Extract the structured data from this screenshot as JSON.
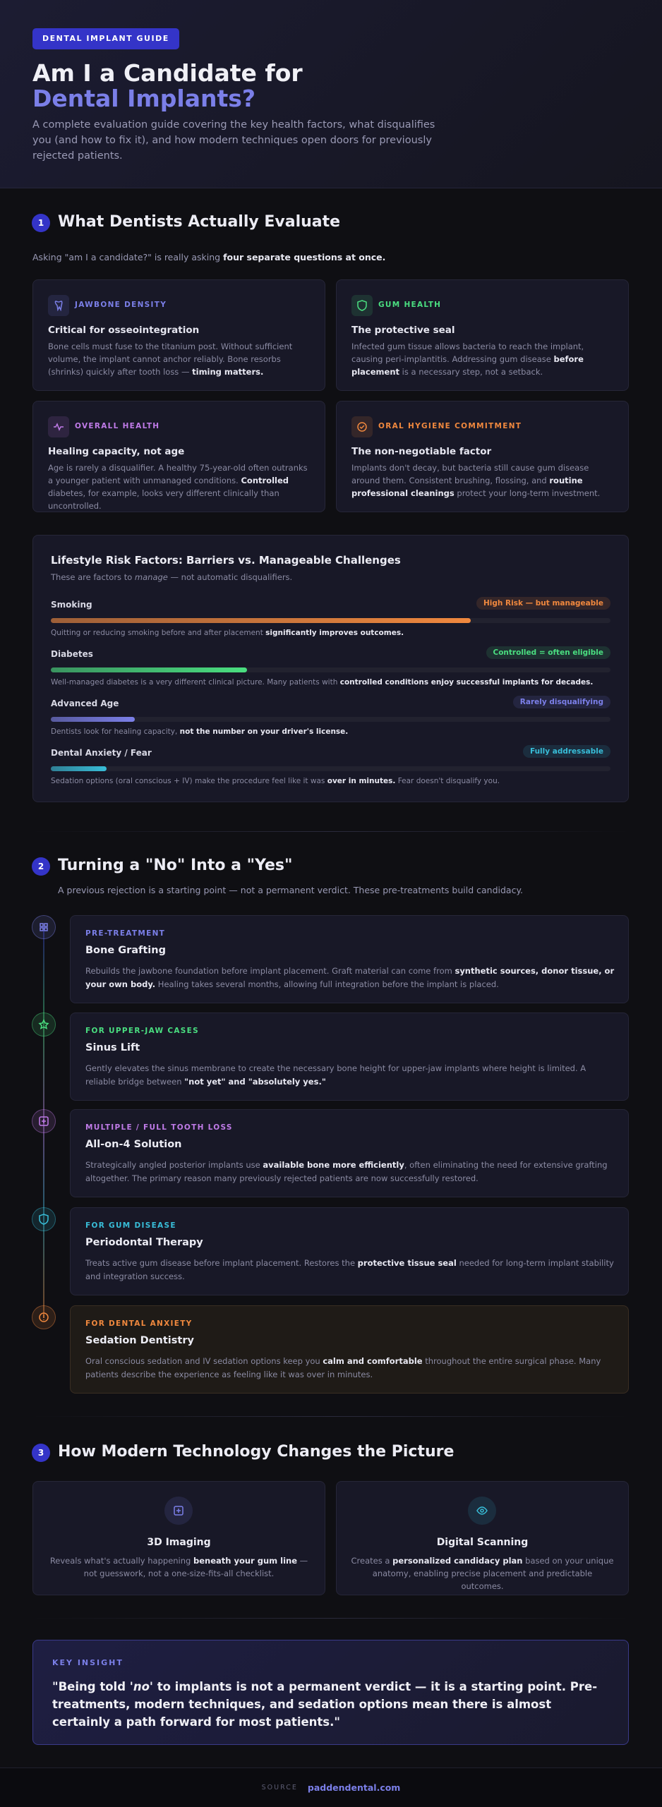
{
  "header": {
    "badge": "DENTAL IMPLANT GUIDE",
    "title_line1": "Am I a Candidate for",
    "title_line2": "Dental Implants?",
    "description": "A complete evaluation guide covering the key health factors, what disqualifies you (and how to fix it), and how modern techniques open doors for previously rejected patients."
  },
  "section1": {
    "number": "1",
    "title": "What Dentists Actually Evaluate",
    "intro": [
      "Asking \"am I a candidate?\" is really asking ",
      {
        "bold": "four separate questions at once."
      }
    ],
    "factors": [
      {
        "label": "JAWBONE DENSITY",
        "color": "#7b7fe8",
        "heading": "Critical for osseointegration",
        "body": [
          "Bone cells must fuse to the titanium post. Without sufficient volume, the implant cannot anchor reliably. Bone resorbs (shrinks) quickly after tooth loss — ",
          {
            "bold": "timing matters."
          }
        ]
      },
      {
        "label": "GUM HEALTH",
        "color": "#4ade80",
        "heading": "The protective seal",
        "body": [
          "Infected gum tissue allows bacteria to reach the implant, causing peri-implantitis. Addressing gum disease ",
          {
            "bold": "before placement"
          },
          " is a necessary step, not a setback."
        ]
      },
      {
        "label": "OVERALL HEALTH",
        "color": "#c07be8",
        "heading": "Healing capacity, not age",
        "body": [
          "Age is rarely a disqualifier. A healthy 75-year-old often outranks a younger patient with unmanaged conditions. ",
          {
            "bold": "Controlled"
          },
          " diabetes, for example, looks very different clinically than uncontrolled."
        ]
      },
      {
        "label": "ORAL HYGIENE COMMITMENT",
        "color": "#f0883e",
        "heading": "The non-negotiable factor",
        "body": [
          "Implants don't decay, but bacteria still cause gum disease around them. Consistent brushing, flossing, and ",
          {
            "bold": "routine professional cleanings"
          },
          " protect your long-term investment."
        ]
      }
    ],
    "lifestyle": {
      "title": "Lifestyle Risk Factors: Barriers vs. Manageable Challenges",
      "subtitle": [
        "These are factors to ",
        {
          "italic": "manage"
        },
        " — not automatic disqualifiers."
      ],
      "scale": [
        0,
        100
      ],
      "items": [
        {
          "label": "Smoking",
          "tag": "High Risk — but manageable",
          "color": "#f0883e",
          "level": 75,
          "note": [
            "Quitting or reducing smoking before and after placement ",
            {
              "bold": "significantly improves outcomes."
            }
          ]
        },
        {
          "label": "Diabetes",
          "tag": "Controlled = often eligible",
          "color": "#4ade80",
          "level": 35,
          "note": [
            "Well-managed diabetes is a very different clinical picture. Many patients with ",
            {
              "bold": "controlled conditions enjoy successful implants for decades."
            }
          ]
        },
        {
          "label": "Advanced Age",
          "tag": "Rarely disqualifying",
          "color": "#7b7fe8",
          "level": 15,
          "note": [
            "Dentists look for healing capacity, ",
            {
              "bold": "not the number on your driver's license."
            }
          ]
        },
        {
          "label": "Dental Anxiety / Fear",
          "tag": "Fully addressable",
          "color": "#38bdd8",
          "level": 10,
          "note": [
            "Sedation options (oral conscious + IV) make the procedure feel like it was ",
            {
              "bold": "over in minutes."
            },
            " Fear doesn't disqualify you."
          ]
        }
      ]
    }
  },
  "section2": {
    "number": "2",
    "title": "Turning a \"No\" Into a \"Yes\"",
    "subtitle": "A previous rejection is a starting point — not a permanent verdict. These pre-treatments build candidacy.",
    "steps": [
      {
        "label": "PRE-TREATMENT",
        "color": "#7b7fe8",
        "heading": "Bone Grafting",
        "body": [
          "Rebuilds the jawbone foundation before implant placement. Graft material can come from ",
          {
            "bold": "synthetic sources, donor tissue, or your own body."
          },
          " Healing takes several months, allowing full integration before the implant is placed."
        ]
      },
      {
        "label": "FOR UPPER-JAW CASES",
        "color": "#4ade80",
        "heading": "Sinus Lift",
        "body": [
          "Gently elevates the sinus membrane to create the necessary bone height for upper-jaw implants where height is limited. A reliable bridge between ",
          {
            "bold": "\"not yet\" and \"absolutely yes.\""
          }
        ]
      },
      {
        "label": "MULTIPLE / FULL TOOTH LOSS",
        "color": "#c07be8",
        "heading": "All-on-4 Solution",
        "body": [
          "Strategically angled posterior implants use ",
          {
            "bold": "available bone more efficiently"
          },
          ", often eliminating the need for extensive grafting altogether. The primary reason many previously rejected patients are now successfully restored."
        ]
      },
      {
        "label": "FOR GUM DISEASE",
        "color": "#38bdd8",
        "heading": "Periodontal Therapy",
        "body": [
          "Treats active gum disease before implant placement. Restores the ",
          {
            "bold": "protective tissue seal"
          },
          " needed for long-term implant stability and integration success."
        ]
      },
      {
        "label": "FOR DENTAL ANXIETY",
        "color": "#f0883e",
        "heading": "Sedation Dentistry",
        "body": [
          "Oral conscious sedation and IV sedation options keep you ",
          {
            "bold": "calm and comfortable"
          },
          " throughout the entire surgical phase. Many patients describe the experience as feeling like it was over in minutes."
        ]
      }
    ]
  },
  "section3": {
    "number": "3",
    "title": "How Modern Technology Changes the Picture",
    "cards": [
      {
        "heading": "3D Imaging",
        "color": "#7b7fe8",
        "body": [
          "Reveals what's actually happening ",
          {
            "bold": "beneath your gum line"
          },
          " — not guesswork, not a one-size-fits-all checklist."
        ]
      },
      {
        "heading": "Digital Scanning",
        "color": "#38bdd8",
        "body": [
          "Creates a ",
          {
            "bold": "personalized candidacy plan"
          },
          " based on your unique anatomy, enabling precise placement and predictable outcomes."
        ]
      }
    ]
  },
  "insight": {
    "label": "KEY INSIGHT",
    "quote": [
      "\"Being told ",
      {
        "italic": "'no'"
      },
      " to implants is not a permanent verdict — it is a starting point. Pre-treatments, modern techniques, and sedation options mean there is almost certainly a path forward for most patients.\""
    ]
  },
  "footer": {
    "source_label": "SOURCE",
    "source": "paddendental.com"
  }
}
